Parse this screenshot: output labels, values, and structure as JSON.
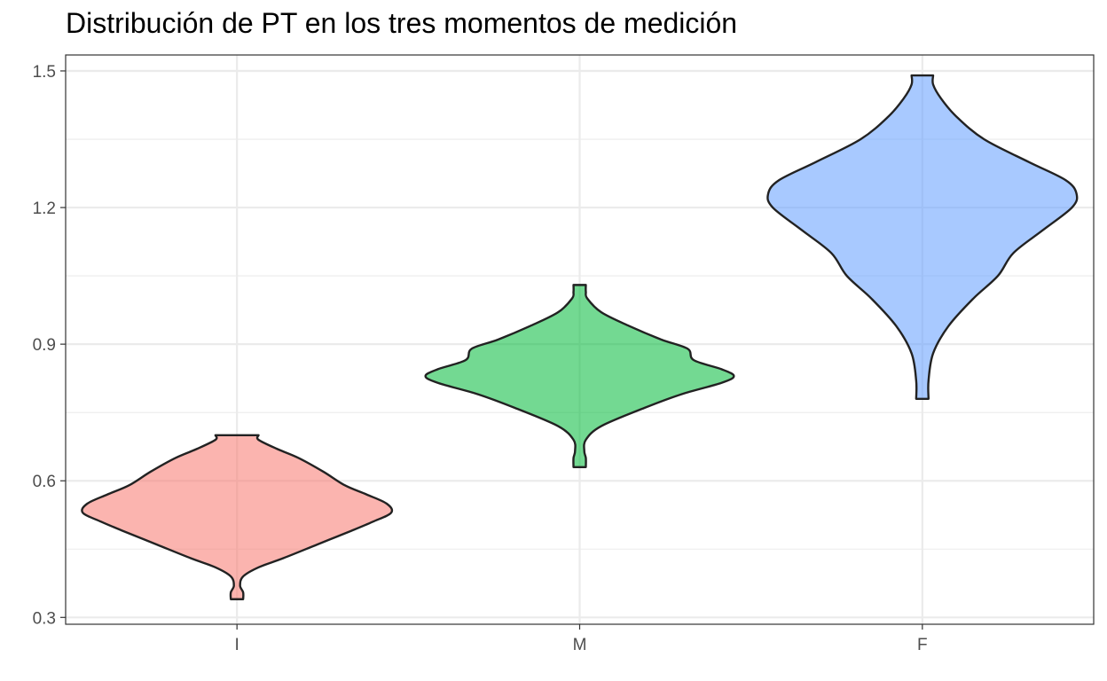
{
  "chart_data": {
    "type": "violin",
    "title": "Distribución de PT en los tres momentos de medición",
    "xlabel": "",
    "ylabel": "",
    "categories": [
      "I",
      "M",
      "F"
    ],
    "ylim": [
      0.285,
      1.535
    ],
    "yticks": [
      {
        "value": 0.3,
        "label": "0.3"
      },
      {
        "value": 0.6,
        "label": "0.6"
      },
      {
        "value": 0.9,
        "label": "0.9"
      },
      {
        "value": 1.2,
        "label": "1.2"
      },
      {
        "value": 1.5,
        "label": "1.5"
      }
    ],
    "y_minor_ticks": [
      0.45,
      0.75,
      1.05,
      1.35
    ],
    "grid": true,
    "legend": "none",
    "series": [
      {
        "category": "I",
        "color": "#F8766D",
        "min": 0.34,
        "max": 0.7,
        "density": [
          [
            0.34,
            0.04
          ],
          [
            0.355,
            0.04
          ],
          [
            0.37,
            0.02
          ],
          [
            0.39,
            0.04
          ],
          [
            0.41,
            0.14
          ],
          [
            0.43,
            0.3
          ],
          [
            0.46,
            0.52
          ],
          [
            0.49,
            0.74
          ],
          [
            0.51,
            0.88
          ],
          [
            0.53,
            1.0
          ],
          [
            0.55,
            0.97
          ],
          [
            0.57,
            0.84
          ],
          [
            0.59,
            0.7
          ],
          [
            0.62,
            0.56
          ],
          [
            0.65,
            0.4
          ],
          [
            0.67,
            0.26
          ],
          [
            0.69,
            0.14
          ],
          [
            0.7,
            0.14
          ]
        ]
      },
      {
        "category": "M",
        "color": "#00BA38",
        "min": 0.63,
        "max": 1.03,
        "density": [
          [
            0.63,
            0.04
          ],
          [
            0.65,
            0.04
          ],
          [
            0.665,
            0.03
          ],
          [
            0.69,
            0.04
          ],
          [
            0.72,
            0.14
          ],
          [
            0.76,
            0.42
          ],
          [
            0.79,
            0.66
          ],
          [
            0.815,
            0.92
          ],
          [
            0.83,
            1.0
          ],
          [
            0.845,
            0.92
          ],
          [
            0.865,
            0.74
          ],
          [
            0.89,
            0.7
          ],
          [
            0.91,
            0.53
          ],
          [
            0.94,
            0.32
          ],
          [
            0.97,
            0.14
          ],
          [
            1.0,
            0.05
          ],
          [
            1.015,
            0.04
          ],
          [
            1.03,
            0.04
          ]
        ]
      },
      {
        "category": "F",
        "color": "#619CFF",
        "min": 0.78,
        "max": 1.49,
        "density": [
          [
            0.78,
            0.04
          ],
          [
            0.82,
            0.04
          ],
          [
            0.88,
            0.07
          ],
          [
            0.94,
            0.17
          ],
          [
            1.0,
            0.33
          ],
          [
            1.05,
            0.49
          ],
          [
            1.1,
            0.59
          ],
          [
            1.15,
            0.78
          ],
          [
            1.2,
            0.97
          ],
          [
            1.23,
            1.0
          ],
          [
            1.26,
            0.93
          ],
          [
            1.3,
            0.69
          ],
          [
            1.35,
            0.4
          ],
          [
            1.4,
            0.22
          ],
          [
            1.44,
            0.12
          ],
          [
            1.47,
            0.07
          ],
          [
            1.49,
            0.07
          ]
        ]
      }
    ]
  }
}
